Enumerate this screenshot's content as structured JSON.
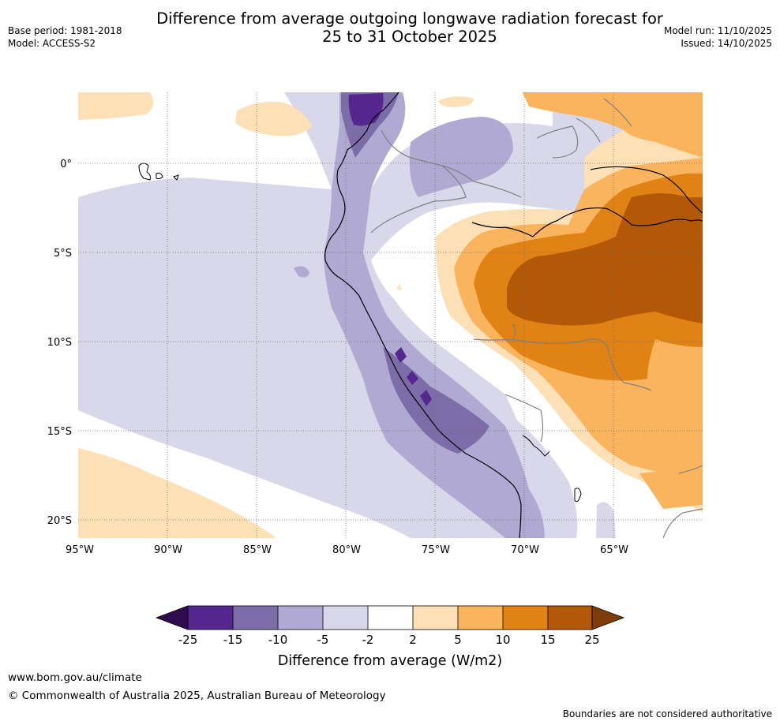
{
  "title": {
    "line1": "Difference from average outgoing longwave radiation forecast for",
    "line2": "25 to 31 October 2025"
  },
  "meta": {
    "base_period": "Base period: 1981-2018",
    "model": "Model: ACCESS-S2",
    "model_run": "Model run: 11/10/2025",
    "issued": "Issued: 14/10/2025"
  },
  "map": {
    "lat_labels": [
      "0°",
      "5°S",
      "10°S",
      "15°S",
      "20°S"
    ],
    "lon_labels": [
      "95°W",
      "90°W",
      "85°W",
      "80°W",
      "75°W",
      "70°W",
      "65°W"
    ]
  },
  "colorbar": {
    "ticks": [
      "-25",
      "-15",
      "-10",
      "-5",
      "-2",
      "2",
      "5",
      "10",
      "15",
      "25"
    ],
    "label": "Difference from average (W/m2)",
    "colors": {
      "lt_neg25": "#2e0c4e",
      "neg25_neg15": "#54278f",
      "neg15_neg10": "#7c6da8",
      "neg10_neg5": "#b0aad2",
      "neg5_neg2": "#d8d8ea",
      "neg2_2": "#ffffff",
      "pos2_5": "#fde0b6",
      "pos5_10": "#fbb45e",
      "pos10_15": "#e08214",
      "pos15_25": "#b35806",
      "gt_25": "#7f3b08"
    }
  },
  "footer": {
    "link": "www.bom.gov.au/climate",
    "copyright": "© Commonwealth of Australia 2025, Australian Bureau of Meteorology",
    "note": "Boundaries are not considered authoritative"
  }
}
